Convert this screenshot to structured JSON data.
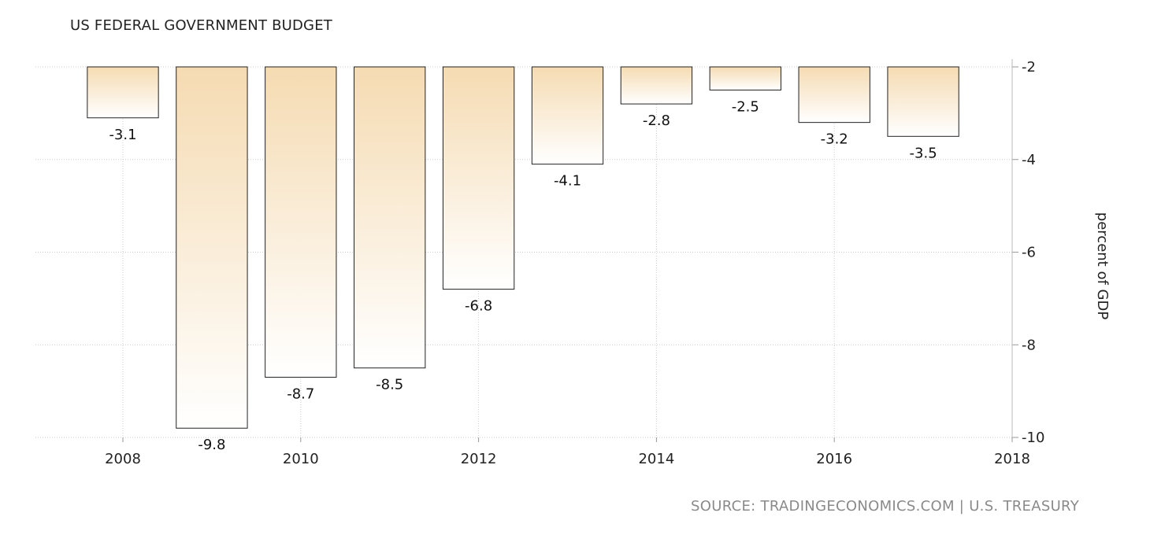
{
  "chart_data": {
    "type": "bar",
    "title": "US FEDERAL GOVERNMENT BUDGET",
    "ylabel": "percent of GDP",
    "categories": [
      "2008",
      "2009",
      "2010",
      "2011",
      "2012",
      "2013",
      "2014",
      "2015",
      "2016",
      "2017"
    ],
    "values": [
      -3.1,
      -9.8,
      -8.7,
      -8.5,
      -6.8,
      -4.1,
      -2.8,
      -2.5,
      -3.2,
      -3.5
    ],
    "value_labels": [
      "-3.1",
      "-9.8",
      "-8.7",
      "-8.5",
      "-6.8",
      "-4.1",
      "-2.8",
      "-2.5",
      "-3.2",
      "-3.5"
    ],
    "ylim": [
      -10,
      -2
    ],
    "yticks": [
      -2,
      -4,
      -6,
      -8,
      -10
    ],
    "ytick_labels": [
      "-2",
      "-4",
      "-6",
      "-8",
      "-10"
    ],
    "xlim": [
      2008,
      2018
    ],
    "xticks": [
      2008,
      2010,
      2012,
      2014,
      2016,
      2018
    ],
    "xtick_labels": [
      "2008",
      "2010",
      "2012",
      "2014",
      "2016",
      "2018"
    ],
    "y_axis_position": "right",
    "grid": true,
    "legend": "none",
    "colors": {
      "bar_top": "#f5dbb2",
      "bar_bottom": "#ffffff",
      "bar_stroke": "#222222",
      "grid": "#cccccc"
    }
  },
  "source": "SOURCE: TRADINGECONOMICS.COM | U.S. TREASURY"
}
